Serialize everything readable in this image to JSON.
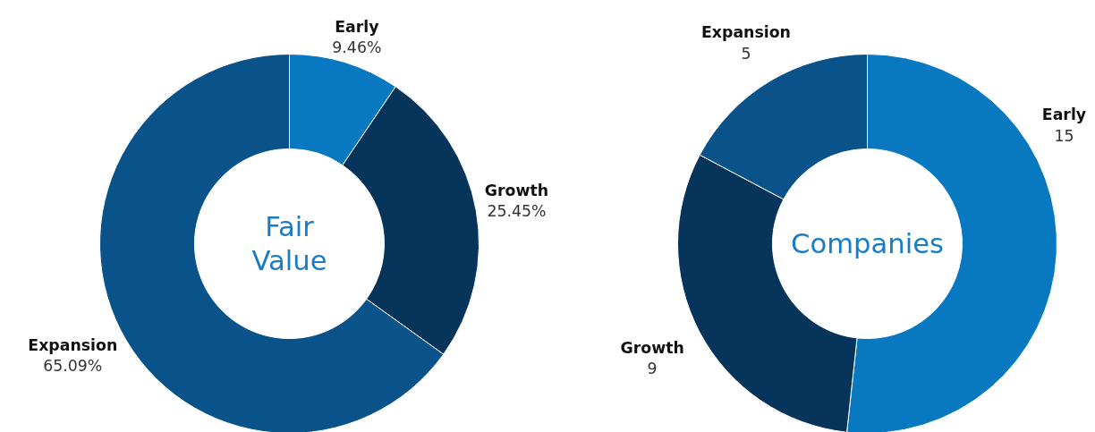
{
  "chart_data": [
    {
      "type": "donut",
      "title": "Fair Value",
      "categories": [
        "Early",
        "Growth",
        "Expansion"
      ],
      "values": [
        9.46,
        25.45,
        65.09
      ],
      "colors": [
        "#0878c0",
        "#07345a",
        "#0a528a"
      ],
      "value_labels": [
        "9.46%",
        "25.45%",
        "65.09%"
      ]
    },
    {
      "type": "donut",
      "title": "Companies",
      "categories": [
        "Early",
        "Growth",
        "Expansion"
      ],
      "values": [
        15,
        9,
        5
      ],
      "colors": [
        "#0878c0",
        "#07345a",
        "#0a528a"
      ],
      "data_labels": true
    }
  ]
}
